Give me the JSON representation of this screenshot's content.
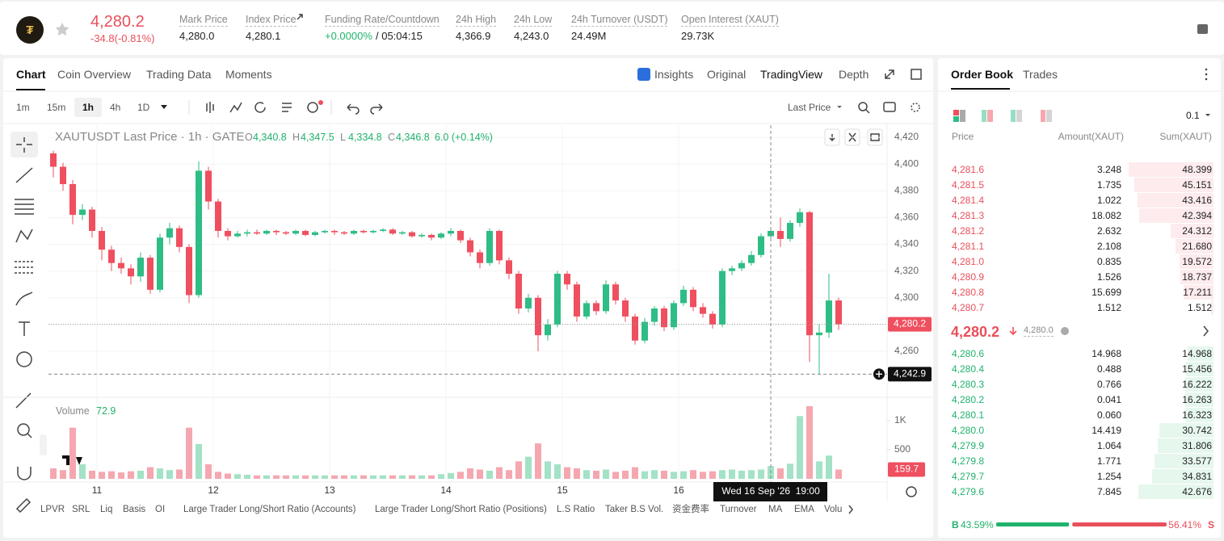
{
  "header": {
    "price": "4,280.2",
    "change": "-34.8(-0.81%)",
    "stats": [
      {
        "label": "Mark Price",
        "value": "4,280.0"
      },
      {
        "label": "Index Price",
        "value": "4,280.1"
      },
      {
        "label": "Funding Rate/Countdown",
        "value": "+0.0000%",
        "extra": "/ 05:04:15"
      },
      {
        "label": "24h High",
        "value": "4,366.9"
      },
      {
        "label": "24h Low",
        "value": "4,243.0"
      },
      {
        "label": "24h Turnover (USDT)",
        "value": "24.49M"
      },
      {
        "label": "Open Interest (XAUT)",
        "value": "29.73K"
      }
    ]
  },
  "chart_tabs": [
    "Chart",
    "Coin Overview",
    "Trading Data",
    "Moments"
  ],
  "view_tabs": [
    "Insights",
    "Original",
    "TradingView",
    "Depth"
  ],
  "intervals": [
    "1m",
    "15m",
    "1h",
    "4h",
    "1D"
  ],
  "price_type": "Last Price",
  "indicators": [
    "LPVR",
    "SRL",
    "Liq",
    "Basis",
    "OI",
    "Large Trader Long/Short Ratio (Accounts)",
    "Large Trader Long/Short Ratio (Positions)",
    "L.S Ratio",
    "Taker B.S Vol.",
    "资金费率",
    "Turnover",
    "MA",
    "EMA",
    "Volu"
  ],
  "chart_data": {
    "type": "candlestick",
    "title": "XAUTUSDT Last Price · 1h · GATE",
    "legend": {
      "o_label": "O",
      "o": "4,340.8",
      "h_label": "H",
      "h": "4,347.5",
      "l_label": "L",
      "l": "4,334.8",
      "c_label": "C",
      "c": "4,346.8",
      "change": "6.0 (+0.14%)"
    },
    "x": [
      -9,
      -7,
      -5,
      -3,
      -1,
      1,
      3,
      5,
      7,
      9,
      11,
      13,
      15,
      17,
      19,
      21,
      23,
      25,
      27,
      29,
      31,
      33,
      35,
      37,
      39,
      41,
      43,
      45,
      47,
      49,
      51,
      53,
      55,
      57,
      59,
      61,
      63,
      65,
      67,
      69,
      71,
      73,
      75,
      77,
      79,
      81,
      83,
      85,
      87,
      89,
      91,
      93,
      95,
      97,
      99,
      101,
      103,
      105,
      107,
      109,
      111,
      113,
      115,
      117,
      119,
      121,
      123,
      125,
      127,
      129,
      131,
      133,
      135,
      137,
      139,
      141,
      143,
      145,
      147,
      149,
      151,
      153
    ],
    "xlim": [
      -10,
      163
    ],
    "xticks": [
      {
        "value": 0,
        "label": "11"
      },
      {
        "value": 24,
        "label": "12"
      },
      {
        "value": 48,
        "label": "13"
      },
      {
        "value": 72,
        "label": "14"
      },
      {
        "value": 96,
        "label": "15"
      },
      {
        "value": 120,
        "label": "16"
      }
    ],
    "open": [
      4408,
      4398,
      4385,
      4362,
      4366,
      4350,
      4336,
      4326,
      4322,
      4316,
      4330,
      4306,
      4345,
      4352,
      4338,
      4302,
      4395,
      4372,
      4350,
      4346,
      4348,
      4349,
      4348,
      4350,
      4349,
      4348,
      4350,
      4347,
      4349,
      4350,
      4349,
      4348,
      4350,
      4349,
      4350,
      4351,
      4348,
      4349,
      4346,
      4347,
      4345,
      4348,
      4350,
      4343,
      4334,
      4326,
      4350,
      4328,
      4318,
      4292,
      4300,
      4272,
      4280,
      4318,
      4310,
      4286,
      4296,
      4290,
      4310,
      4298,
      4286,
      4268,
      4282,
      4292,
      4278,
      4296,
      4306,
      4293,
      4288,
      4280,
      4320,
      4322,
      4326,
      4332,
      4346,
      4350,
      4344,
      4356,
      4364,
      4272,
      4274,
      4298
    ],
    "high": [
      4410,
      4401,
      4388,
      4370,
      4368,
      4353,
      4339,
      4330,
      4325,
      4334,
      4332,
      4348,
      4356,
      4354,
      4340,
      4402,
      4398,
      4374,
      4352,
      4350,
      4351,
      4351,
      4351,
      4351,
      4350,
      4351,
      4351,
      4350,
      4351,
      4351,
      4350,
      4351,
      4351,
      4351,
      4352,
      4352,
      4350,
      4350,
      4348,
      4348,
      4349,
      4352,
      4351,
      4345,
      4336,
      4352,
      4351,
      4330,
      4320,
      4303,
      4302,
      4284,
      4320,
      4320,
      4312,
      4298,
      4298,
      4313,
      4312,
      4300,
      4288,
      4285,
      4294,
      4294,
      4298,
      4309,
      4308,
      4296,
      4290,
      4322,
      4324,
      4328,
      4335,
      4348,
      4353,
      4360,
      4358,
      4366.9,
      4365,
      4280,
      4318,
      4300
    ],
    "low": [
      4390,
      4380,
      4355,
      4358,
      4345,
      4328,
      4320,
      4318,
      4310,
      4312,
      4303,
      4304,
      4340,
      4334,
      4296,
      4300,
      4366,
      4345,
      4343,
      4345,
      4346,
      4347,
      4347,
      4347,
      4347,
      4347,
      4346,
      4346,
      4348,
      4347,
      4347,
      4347,
      4348,
      4348,
      4349,
      4347,
      4347,
      4345,
      4345,
      4343,
      4344,
      4346,
      4341,
      4331,
      4322,
      4324,
      4325,
      4314,
      4288,
      4289,
      4260,
      4268,
      4278,
      4306,
      4282,
      4284,
      4287,
      4288,
      4295,
      4282,
      4265,
      4266,
      4279,
      4275,
      4276,
      4294,
      4290,
      4285,
      4277,
      4278,
      4317,
      4320,
      4324,
      4330,
      4343,
      4338,
      4342,
      4353,
      4252,
      4243,
      4270,
      4276
    ],
    "close": [
      4398,
      4385,
      4362,
      4366,
      4350,
      4336,
      4326,
      4322,
      4316,
      4330,
      4306,
      4345,
      4352,
      4338,
      4302,
      4395,
      4372,
      4350,
      4346,
      4348,
      4349,
      4348,
      4350,
      4349,
      4348,
      4350,
      4347,
      4349,
      4350,
      4349,
      4348,
      4350,
      4349,
      4350,
      4351,
      4348,
      4349,
      4346,
      4347,
      4345,
      4348,
      4350,
      4343,
      4334,
      4326,
      4350,
      4328,
      4318,
      4292,
      4300,
      4272,
      4280,
      4318,
      4310,
      4286,
      4296,
      4290,
      4310,
      4298,
      4286,
      4268,
      4282,
      4292,
      4278,
      4296,
      4306,
      4293,
      4288,
      4280,
      4320,
      4322,
      4326,
      4332,
      4346,
      4350,
      4344,
      4356,
      4364,
      4272,
      4274,
      4298,
      4280.2
    ],
    "up_color": "#2ebd85",
    "down_color": "#ef4f5f",
    "ylim": [
      4226.8,
      4429.1
    ],
    "yticks": [
      {
        "value": 4260,
        "label": "4,260"
      },
      {
        "value": 4280,
        "label": "4,280"
      },
      {
        "value": 4300,
        "label": "4,300"
      },
      {
        "value": 4320,
        "label": "4,320"
      },
      {
        "value": 4340,
        "label": "4,340"
      },
      {
        "value": 4360,
        "label": "4,360"
      },
      {
        "value": 4380,
        "label": "4,380"
      },
      {
        "value": 4400,
        "label": "4,400"
      },
      {
        "value": 4420,
        "label": "4,420"
      }
    ],
    "grid": true,
    "last_price": {
      "value": 4280.2,
      "label": "4,280.2"
    },
    "crosshair": {
      "x": 139,
      "x_label": "Wed 16 Sep '26  19:00",
      "y": 4242.9,
      "y_label": "4,242.9"
    },
    "volume": {
      "title": "Volume",
      "value_text": "72.9",
      "values": [
        180,
        150,
        880,
        250,
        140,
        120,
        130,
        110,
        130,
        140,
        200,
        180,
        150,
        160,
        880,
        600,
        250,
        120,
        90,
        80,
        70,
        60,
        60,
        60,
        60,
        60,
        60,
        60,
        60,
        60,
        60,
        60,
        60,
        60,
        60,
        60,
        60,
        60,
        60,
        60,
        80,
        100,
        120,
        180,
        160,
        140,
        200,
        150,
        300,
        380,
        610,
        300,
        250,
        200,
        180,
        150,
        140,
        160,
        120,
        140,
        200,
        130,
        150,
        140,
        120,
        130,
        150,
        120,
        130,
        150,
        160,
        140,
        150,
        160,
        220,
        180,
        260,
        1080,
        1250,
        300,
        400,
        159.7
      ],
      "up_color": "#a3e2c6",
      "down_color": "#f5a7b0",
      "ylim": [
        0,
        1389
      ],
      "yticks": [
        500,
        {
          "value": 1000,
          "label": "1K"
        }
      ],
      "last": {
        "value": 159.7,
        "label": "159.7"
      }
    }
  },
  "order_book": {
    "tabs": [
      "Order Book",
      "Trades"
    ],
    "precision": "0.1",
    "headers": [
      "Price",
      "Amount(XAUT)",
      "Sum(XAUT)"
    ],
    "asks": [
      [
        "4,281.6",
        "3.248",
        "48.399"
      ],
      [
        "4,281.5",
        "1.735",
        "45.151"
      ],
      [
        "4,281.4",
        "1.022",
        "43.416"
      ],
      [
        "4,281.3",
        "18.082",
        "42.394"
      ],
      [
        "4,281.2",
        "2.632",
        "24.312"
      ],
      [
        "4,281.1",
        "2.108",
        "21.680"
      ],
      [
        "4,281.0",
        "0.835",
        "19.572"
      ],
      [
        "4,280.9",
        "1.526",
        "18.737"
      ],
      [
        "4,280.8",
        "15.699",
        "17.211"
      ],
      [
        "4,280.7",
        "1.512",
        "1.512"
      ]
    ],
    "mid": {
      "price": "4,280.2",
      "mark": "4,280.0"
    },
    "bids": [
      [
        "4,280.6",
        "14.968",
        "14.968"
      ],
      [
        "4,280.4",
        "0.488",
        "15.456"
      ],
      [
        "4,280.3",
        "0.766",
        "16.222"
      ],
      [
        "4,280.2",
        "0.041",
        "16.263"
      ],
      [
        "4,280.1",
        "0.060",
        "16.323"
      ],
      [
        "4,280.0",
        "14.419",
        "30.742"
      ],
      [
        "4,279.9",
        "1.064",
        "31.806"
      ],
      [
        "4,279.8",
        "1.771",
        "33.577"
      ],
      [
        "4,279.7",
        "1.254",
        "34.831"
      ],
      [
        "4,279.6",
        "7.845",
        "42.676"
      ]
    ],
    "ratio": {
      "buy_label": "B",
      "buy": "43.59%",
      "sell": "56.41%",
      "sell_label": "S"
    }
  }
}
